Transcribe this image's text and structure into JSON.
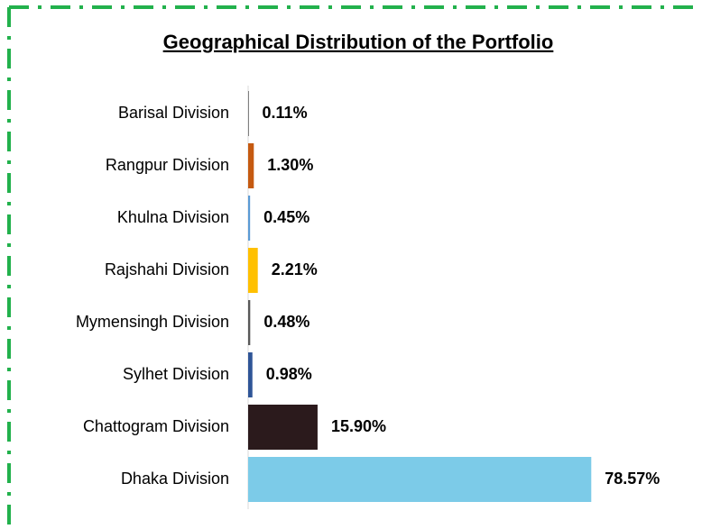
{
  "chart_data": {
    "type": "bar",
    "orientation": "horizontal",
    "title": "Geographical Distribution of the Portfolio",
    "categories": [
      "Barisal Division",
      "Rangpur Division",
      "Khulna Division",
      "Rajshahi Division",
      "Mymensingh Division",
      "Sylhet Division",
      "Chattogram Division",
      "Dhaka Division"
    ],
    "values": [
      0.11,
      1.3,
      0.45,
      2.21,
      0.48,
      0.98,
      15.9,
      78.57
    ],
    "value_labels": [
      "0.11%",
      "1.30%",
      "0.45%",
      "2.21%",
      "0.48%",
      "0.98%",
      "15.90%",
      "78.57%"
    ],
    "colors": [
      "#7f7f7f",
      "#c55a11",
      "#5b9bd5",
      "#ffc000",
      "#595959",
      "#2f5597",
      "#2b1a1c",
      "#7ccbe8"
    ],
    "xlim": [
      0,
      100
    ]
  }
}
